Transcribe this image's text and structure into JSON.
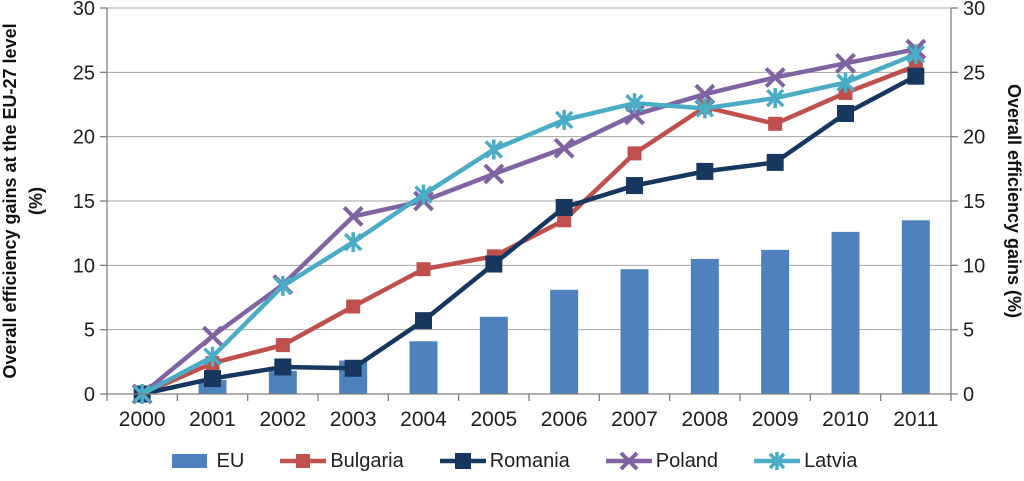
{
  "chart_data": {
    "type": "combo-bar-line",
    "title": "",
    "categories": [
      "2000",
      "2001",
      "2002",
      "2003",
      "2004",
      "2005",
      "2006",
      "2007",
      "2008",
      "2009",
      "2010",
      "2011"
    ],
    "series": [
      {
        "name": "EU",
        "type": "bar",
        "marker": "none",
        "color": "#4F81BD",
        "values": [
          0,
          1.1,
          1.8,
          2.6,
          4.1,
          6.0,
          8.1,
          9.7,
          10.5,
          11.2,
          12.6,
          13.5
        ]
      },
      {
        "name": "Bulgaria",
        "type": "line",
        "marker": "square",
        "color": "#C0504D",
        "values": [
          0,
          2.4,
          3.8,
          6.8,
          9.7,
          10.7,
          13.5,
          18.7,
          22.3,
          21.0,
          23.4,
          25.5
        ]
      },
      {
        "name": "Romania",
        "type": "line",
        "marker": "square",
        "color": "#17375E",
        "values": [
          0,
          1.2,
          2.1,
          2.0,
          5.7,
          10.1,
          14.5,
          16.2,
          17.3,
          18.0,
          21.8,
          24.7
        ]
      },
      {
        "name": "Poland",
        "type": "line",
        "marker": "x",
        "color": "#8064A2",
        "values": [
          0,
          4.5,
          8.5,
          13.8,
          15.0,
          17.1,
          19.1,
          21.7,
          23.3,
          24.6,
          25.7,
          26.8
        ]
      },
      {
        "name": "Latvia",
        "type": "line",
        "marker": "asterisk",
        "color": "#4BACC6",
        "values": [
          0,
          2.9,
          8.4,
          11.8,
          15.5,
          19.0,
          21.3,
          22.6,
          22.2,
          23.0,
          24.2,
          26.4
        ]
      }
    ],
    "ylabel_left": "Overall efficiency gains at the EU-27 level (%)",
    "ylabel_left_lines": [
      "Overall efficiency gains at the EU-27 level",
      "(%)"
    ],
    "ylabel_right": "Overall efficiency gains (%)",
    "xlabel": "",
    "y_ticks": [
      0,
      5,
      10,
      15,
      20,
      25,
      30
    ],
    "ylim": [
      0,
      30
    ],
    "grid": true,
    "legend_position": "bottom"
  },
  "colors": {
    "gridline": "#A6A6A6",
    "axis": "#7F7F7F",
    "text": "#1F1F1F",
    "background": "#FFFFFF"
  }
}
